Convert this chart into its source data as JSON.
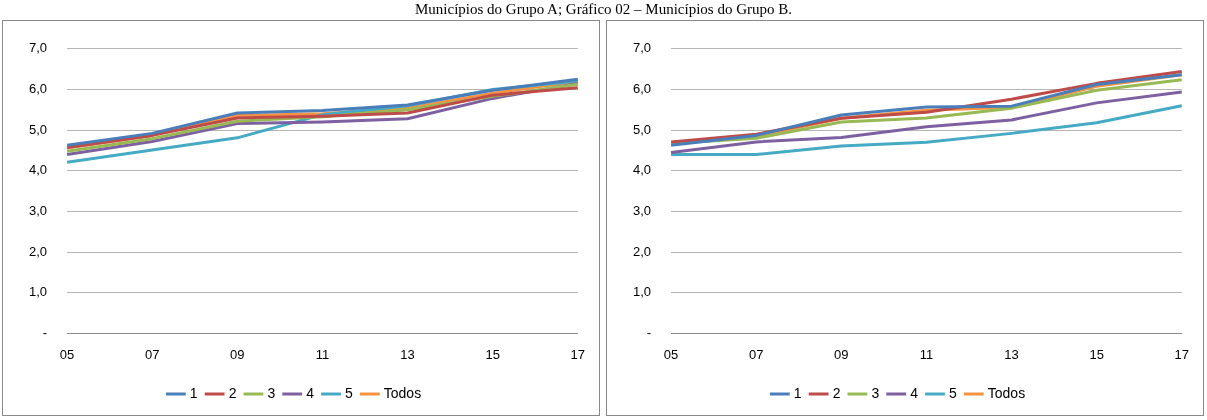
{
  "chart_data": [
    {
      "type": "line",
      "annotations": [
        "Municípios do Grupo A; Gráfico 02 – Municípios do Grupo B."
      ],
      "categories": [
        "05",
        "07",
        "09",
        "11",
        "13",
        "15",
        "17"
      ],
      "ylim": [
        0,
        7
      ],
      "yticks": [
        {
          "value": 0,
          "label": "-"
        },
        {
          "value": 1,
          "label": "1,0"
        },
        {
          "value": 2,
          "label": "2,0"
        },
        {
          "value": 3,
          "label": "3,0"
        },
        {
          "value": 4,
          "label": "4,0"
        },
        {
          "value": 5,
          "label": "5,0"
        },
        {
          "value": 6,
          "label": "6,0"
        },
        {
          "value": 7,
          "label": "7,0"
        }
      ],
      "grid": "y",
      "legend": "bottom",
      "series": [
        {
          "name": "1",
          "color": "#4a7ebb",
          "values": [
            4.63,
            4.92,
            5.42,
            5.48,
            5.62,
            5.98,
            6.25
          ]
        },
        {
          "name": "2",
          "color": "#be4b48",
          "values": [
            4.57,
            4.87,
            5.3,
            5.34,
            5.42,
            5.86,
            6.04
          ]
        },
        {
          "name": "3",
          "color": "#98b954",
          "values": [
            4.48,
            4.79,
            5.22,
            5.33,
            5.5,
            5.83,
            6.13
          ]
        },
        {
          "name": "4",
          "color": "#7d60a0",
          "values": [
            4.4,
            4.72,
            5.16,
            5.2,
            5.28,
            5.78,
            6.15
          ]
        },
        {
          "name": "5",
          "color": "#46aac5",
          "values": [
            4.21,
            4.51,
            4.81,
            5.38,
            5.6,
            6.0,
            6.21
          ]
        },
        {
          "name": "Todos",
          "color": "#f69240",
          "values": [
            4.56,
            4.87,
            5.36,
            5.4,
            5.54,
            5.91,
            6.2
          ]
        }
      ]
    },
    {
      "type": "line",
      "categories": [
        "05",
        "07",
        "09",
        "11",
        "13",
        "15",
        "17"
      ],
      "ylim": [
        0,
        7
      ],
      "yticks": [
        {
          "value": 0,
          "label": "-"
        },
        {
          "value": 1,
          "label": "1,0"
        },
        {
          "value": 2,
          "label": "2,0"
        },
        {
          "value": 3,
          "label": "3,0"
        },
        {
          "value": 4,
          "label": "4,0"
        },
        {
          "value": 5,
          "label": "5,0"
        },
        {
          "value": 6,
          "label": "6,0"
        },
        {
          "value": 7,
          "label": "7,0"
        }
      ],
      "grid": "y",
      "legend": "bottom",
      "series": [
        {
          "name": "1",
          "color": "#4a7ebb",
          "values": [
            4.63,
            4.87,
            5.37,
            5.57,
            5.59,
            6.12,
            6.36
          ]
        },
        {
          "name": "2",
          "color": "#be4b48",
          "values": [
            4.71,
            4.9,
            5.29,
            5.44,
            5.76,
            6.15,
            6.44
          ]
        },
        {
          "name": "3",
          "color": "#98b954",
          "values": [
            4.67,
            4.8,
            5.2,
            5.3,
            5.54,
            5.98,
            6.24
          ]
        },
        {
          "name": "4",
          "color": "#7d60a0",
          "values": [
            4.45,
            4.71,
            4.82,
            5.08,
            5.25,
            5.67,
            5.94
          ]
        },
        {
          "name": "5",
          "color": "#46aac5",
          "values": [
            4.4,
            4.4,
            4.61,
            4.7,
            4.92,
            5.18,
            5.6
          ]
        },
        {
          "name": "Todos",
          "color": "#f69240",
          "values": [
            4.67,
            4.85,
            5.29,
            5.49,
            5.56,
            6.08,
            6.36
          ]
        }
      ]
    }
  ]
}
